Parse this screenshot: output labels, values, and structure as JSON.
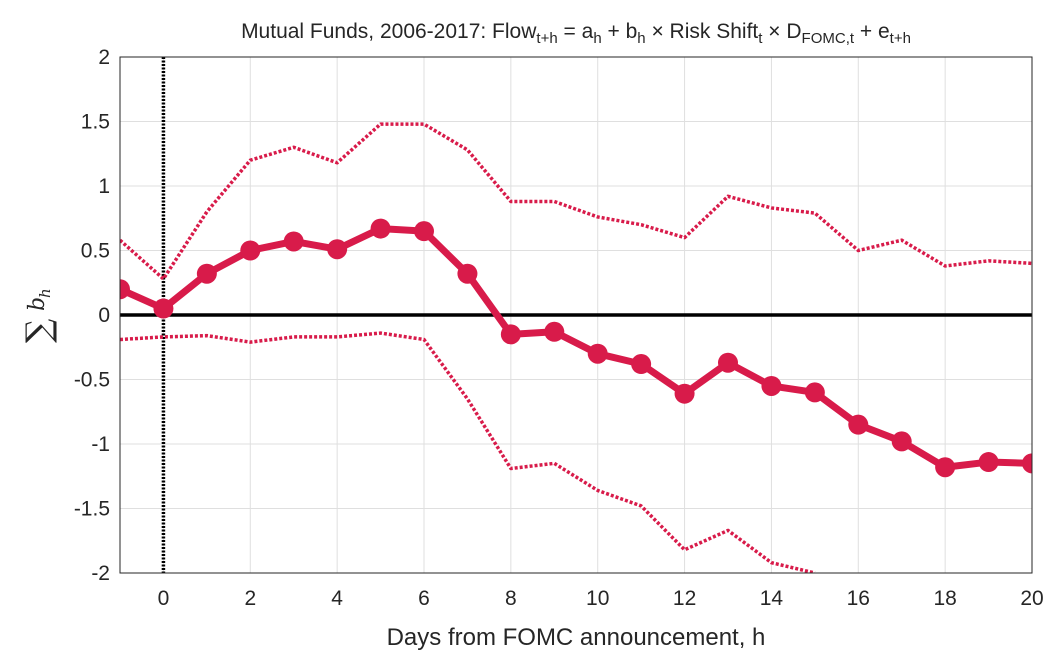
{
  "chart_data": {
    "type": "line",
    "title": [
      "Mutual Funds, 2006-2017: Flow",
      "t+h",
      " = a",
      "h",
      " + b",
      "h",
      " × Risk Shift",
      "t",
      " × D",
      "FOMC,t",
      " + e",
      "t+h"
    ],
    "xlabel": "Days from FOMC announcement, h",
    "ylabel": [
      "∑",
      "b",
      "h"
    ],
    "x": [
      -1,
      0,
      1,
      2,
      3,
      4,
      5,
      6,
      7,
      8,
      9,
      10,
      11,
      12,
      13,
      14,
      15,
      16,
      17,
      18,
      19,
      20
    ],
    "series": [
      {
        "color": "#d81b4a",
        "style": "solid-markers",
        "values": [
          0.2,
          0.05,
          0.32,
          0.5,
          0.57,
          0.51,
          0.67,
          0.65,
          0.32,
          -0.15,
          -0.13,
          -0.3,
          -0.38,
          -0.61,
          -0.37,
          -0.55,
          -0.6,
          -0.85,
          -0.98,
          -1.18,
          -1.14,
          -1.15
        ]
      },
      {
        "color": "#d81b4a",
        "style": "dotted",
        "values": [
          0.58,
          0.28,
          0.8,
          1.2,
          1.3,
          1.18,
          1.48,
          1.48,
          1.28,
          0.88,
          0.88,
          0.76,
          0.7,
          0.6,
          0.92,
          0.83,
          0.79,
          0.5,
          0.58,
          0.38,
          0.42,
          0.4
        ]
      },
      {
        "color": "#d81b4a",
        "style": "dotted",
        "values": [
          -0.19,
          -0.17,
          -0.16,
          -0.21,
          -0.17,
          -0.17,
          -0.14,
          -0.19,
          -0.65,
          -1.19,
          -1.15,
          -1.36,
          -1.48,
          -1.82,
          -1.67,
          -1.92,
          -2.0,
          null,
          null,
          null,
          null,
          null
        ]
      }
    ],
    "xlim": [
      -1,
      20
    ],
    "ylim": [
      -2,
      2
    ],
    "xticks": [
      0,
      2,
      4,
      6,
      8,
      10,
      12,
      14,
      16,
      18,
      20
    ],
    "yticks": [
      -2,
      -1.5,
      -1,
      -0.5,
      0,
      0.5,
      1,
      1.5,
      2
    ],
    "hline": 0,
    "vline": 0,
    "grid": true
  }
}
